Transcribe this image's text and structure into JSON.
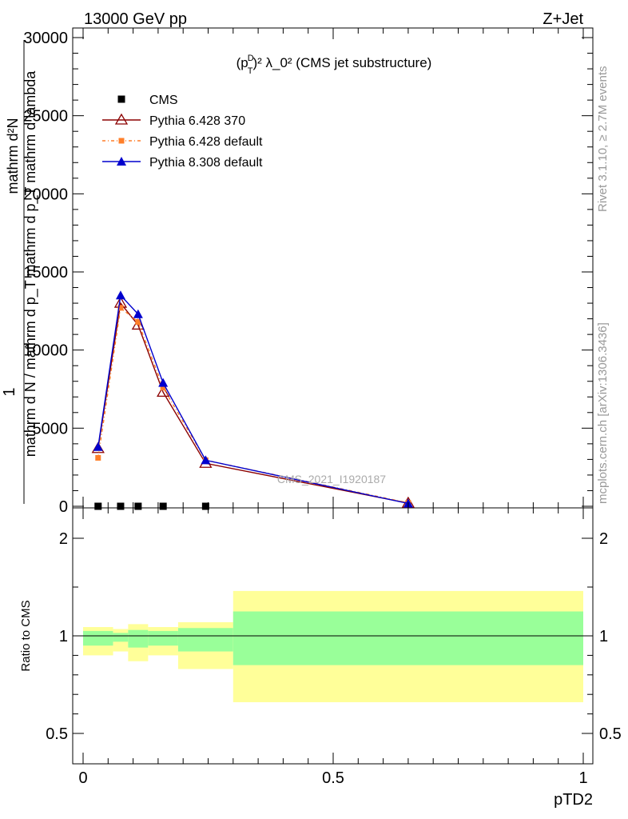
{
  "header": {
    "left": "13000 GeV pp",
    "right": "Z+Jet"
  },
  "side_labels": {
    "rivet": "Rivet 3.1.10, ≥ 2.7M events",
    "mcplots": "mcplots.cern.ch [arXiv:1306.3436]"
  },
  "watermark": "CMS_2021_I1920187",
  "plot_title": {
    "prefix": "(p",
    "sup": "D",
    "sub": "T",
    "suffix": ")² λ_0² (CMS jet substructure)"
  },
  "axis": {
    "ylabel_main": "1 / mathrm d N / mathrm d p_T mathrm d^2N / mathrm d p_T mathrm d lambda",
    "ylabel_main_top": "mathrm d²N",
    "ylabel_main_bottom": "mathrm d N / mathrm d p_T mathrm d p_T mathrm d lambda",
    "ylabel_main_one": "1",
    "ylabel_ratio": "Ratio to CMS",
    "xlabel": "pTD2"
  },
  "chart_data": [
    {
      "type": "line",
      "panel": "main",
      "xlim": [
        0,
        1
      ],
      "ylim": [
        0,
        30000
      ],
      "y_ticks": [
        0,
        5000,
        10000,
        15000,
        20000,
        25000,
        30000
      ],
      "y_tick_labels": [
        "0",
        "5000",
        "10000",
        "15000",
        "20000",
        "25000",
        "30000"
      ],
      "legend_position": "top-left",
      "series": [
        {
          "name": "CMS",
          "color": "#000000",
          "marker": "square",
          "x": [
            0.03,
            0.075,
            0.11,
            0.16,
            0.245
          ],
          "y": [
            0,
            0,
            0,
            0,
            0
          ]
        },
        {
          "name": "Pythia 6.428 370",
          "color": "#8b0000",
          "marker": "open-triangle",
          "x": [
            0.03,
            0.075,
            0.11,
            0.16,
            0.245,
            0.65
          ],
          "y": [
            3700,
            13000,
            11600,
            7300,
            2750,
            200
          ]
        },
        {
          "name": "Pythia 6.428 default",
          "color": "#ff7f2a",
          "marker": "small-square",
          "dashed": true,
          "x": [
            0.03,
            0.075,
            0.11,
            0.16,
            0.245,
            0.65
          ],
          "y": [
            3100,
            12700,
            11800,
            7600,
            2950,
            220
          ]
        },
        {
          "name": "Pythia 8.308 default",
          "color": "#0000cd",
          "marker": "filled-triangle",
          "x": [
            0.03,
            0.075,
            0.11,
            0.16,
            0.245,
            0.65
          ],
          "y": [
            3800,
            13500,
            12300,
            7900,
            2950,
            180
          ]
        }
      ]
    },
    {
      "type": "area",
      "panel": "ratio",
      "xlim": [
        0,
        1
      ],
      "ylim": [
        0.35,
        2.3
      ],
      "y_ticks": [
        0.5,
        1,
        2
      ],
      "y_tick_labels": [
        "0.5",
        "1",
        "2"
      ],
      "x_ticks": [
        0,
        0.5,
        1
      ],
      "x_tick_labels": [
        "0",
        "0.5",
        "1"
      ],
      "reference_line": 1,
      "bands": [
        {
          "x0": 0.0,
          "x1": 0.06,
          "yellow": [
            0.9,
            1.09
          ],
          "green": [
            0.95,
            1.05
          ]
        },
        {
          "x0": 0.06,
          "x1": 0.09,
          "yellow": [
            0.92,
            1.07
          ],
          "green": [
            0.97,
            1.03
          ]
        },
        {
          "x0": 0.09,
          "x1": 0.13,
          "yellow": [
            0.87,
            1.12
          ],
          "green": [
            0.94,
            1.06
          ]
        },
        {
          "x0": 0.13,
          "x1": 0.19,
          "yellow": [
            0.9,
            1.09
          ],
          "green": [
            0.95,
            1.05
          ]
        },
        {
          "x0": 0.19,
          "x1": 0.3,
          "yellow": [
            0.83,
            1.14
          ],
          "green": [
            0.92,
            1.08
          ]
        },
        {
          "x0": 0.3,
          "x1": 1.0,
          "yellow": [
            0.66,
            1.46
          ],
          "green": [
            0.85,
            1.25
          ]
        }
      ],
      "band_colors": {
        "yellow": "#ffff99",
        "green": "#99ff99"
      }
    }
  ]
}
